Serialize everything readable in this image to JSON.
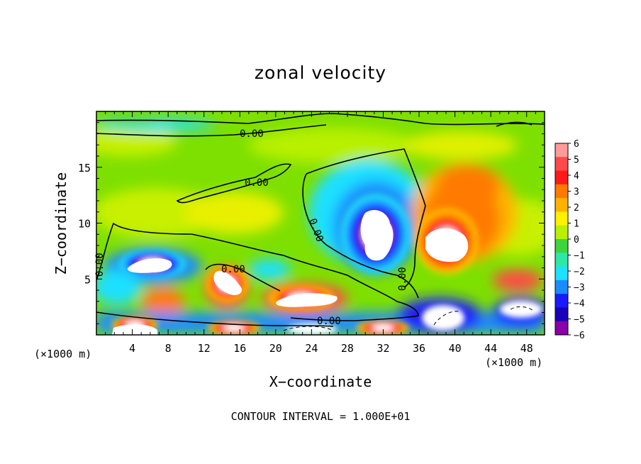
{
  "chart_data": {
    "type": "heatmap",
    "title": "zonal velocity",
    "xlabel": "X−coordinate",
    "ylabel": "Z−coordinate",
    "x_unit_label": "(×1000 m)",
    "xlim": [
      0,
      50
    ],
    "ylim": [
      0,
      20
    ],
    "x_ticks": [
      4,
      8,
      12,
      16,
      20,
      24,
      28,
      32,
      36,
      40,
      44,
      48
    ],
    "y_ticks": [
      5,
      10,
      15
    ],
    "colorbar": {
      "ticks": [
        6,
        5,
        4,
        3,
        2,
        1,
        0,
        -1,
        -2,
        -3,
        -4,
        -5,
        -6
      ],
      "tick_labels": [
        "6",
        "5",
        "4",
        "3",
        "2",
        "1",
        "0",
        "−1",
        "−2",
        "−3",
        "−4",
        "−5",
        "−6"
      ],
      "colors": [
        "#ff9a9a",
        "#ff4a4a",
        "#ff1a1a",
        "#ff7a00",
        "#ffb300",
        "#ffef00",
        "#b8f000",
        "#3ed43e",
        "#2ee8a8",
        "#1ee0ff",
        "#1a8cff",
        "#1a1aff",
        "#1a00b8",
        "#8a00a8"
      ]
    },
    "contour_labels": [
      "0.00",
      "0.00",
      "0.00",
      "0.00",
      "0.00",
      "0.00",
      "0.00"
    ],
    "features": [
      {
        "kind": "negative_core",
        "x": 30.5,
        "z": 9.5,
        "value": -6
      },
      {
        "kind": "positive_core",
        "x": 38.5,
        "z": 8.5,
        "value": 6
      },
      {
        "kind": "negative_core",
        "x": 6,
        "z": 6,
        "value": -6
      },
      {
        "kind": "positive_core",
        "x": 14.5,
        "z": 4.5,
        "value": 6
      },
      {
        "kind": "positive_core",
        "x": 24,
        "z": 3,
        "value": 6
      }
    ],
    "footnote": "CONTOUR INTERVAL = 1.000E+01"
  }
}
